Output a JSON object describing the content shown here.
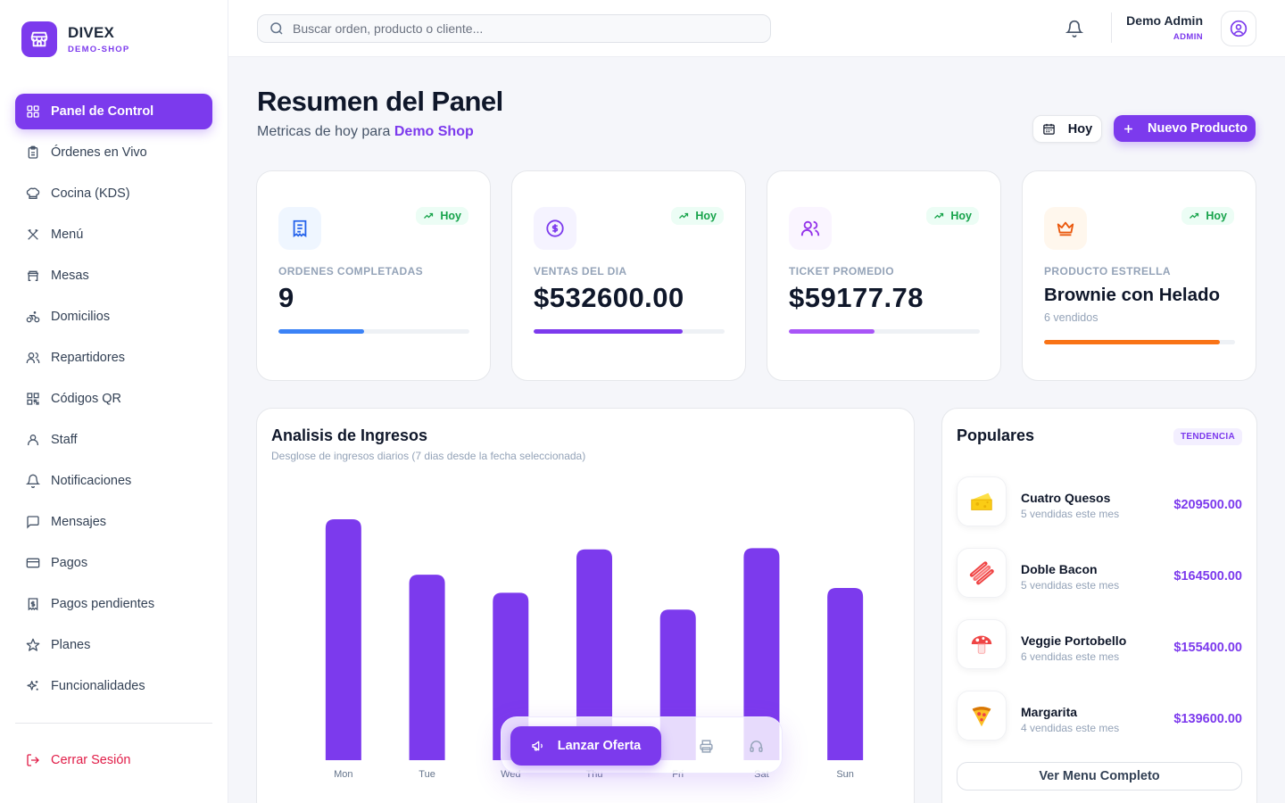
{
  "brand": {
    "name": "DIVEX",
    "subtitle": "DEMO-SHOP"
  },
  "sidebar": {
    "items": [
      {
        "label": "Panel de Control",
        "icon": "dashboard-icon",
        "active": true
      },
      {
        "label": "Órdenes en Vivo",
        "icon": "clipboard-icon"
      },
      {
        "label": "Cocina (KDS)",
        "icon": "chef-hat-icon"
      },
      {
        "label": "Menú",
        "icon": "utensils-icon"
      },
      {
        "label": "Mesas",
        "icon": "table-icon"
      },
      {
        "label": "Domicilios",
        "icon": "bike-icon"
      },
      {
        "label": "Repartidores",
        "icon": "users-icon"
      },
      {
        "label": "Códigos QR",
        "icon": "qr-code-icon"
      },
      {
        "label": "Staff",
        "icon": "staff-icon"
      },
      {
        "label": "Notificaciones",
        "icon": "bell-icon"
      },
      {
        "label": "Mensajes",
        "icon": "message-icon"
      },
      {
        "label": "Pagos",
        "icon": "credit-card-icon"
      },
      {
        "label": "Pagos pendientes",
        "icon": "receipt-dollar-icon"
      },
      {
        "label": "Planes",
        "icon": "star-icon"
      },
      {
        "label": "Funcionalidades",
        "icon": "sparkles-icon"
      }
    ],
    "logout_label": "Cerrar Sesión"
  },
  "topbar": {
    "search_placeholder": "Buscar orden, producto o cliente...",
    "user_name": "Demo Admin",
    "user_role": "ADMIN"
  },
  "header": {
    "title": "Resumen del Panel",
    "subtitle_prefix": "Metricas de hoy para",
    "shop_name": "Demo Shop",
    "today_button": "Hoy",
    "new_product_button": "Nuevo Producto"
  },
  "kpis": [
    {
      "label": "ORDENES COMPLETADAS",
      "value": "9",
      "badge": "Hoy",
      "progress": 0.45,
      "color": "#3b82f6",
      "icon": "receipt-icon"
    },
    {
      "label": "VENTAS DEL DIA",
      "value": "$532600.00",
      "badge": "Hoy",
      "progress": 0.78,
      "color": "#7c3aed",
      "icon": "dollar-circle-icon"
    },
    {
      "label": "TICKET PROMEDIO",
      "value": "$59177.78",
      "badge": "Hoy",
      "progress": 0.45,
      "color": "#a855f7",
      "icon": "users-icon"
    },
    {
      "label": "PRODUCTO ESTRELLA",
      "value": "Brownie con Helado",
      "note": "6 vendidos",
      "badge": "Hoy",
      "progress": 0.92,
      "color": "#f97316",
      "icon": "crown-icon"
    }
  ],
  "revenue": {
    "title": "Analisis de Ingresos",
    "subtitle": "Desglose de ingresos diarios (7 dias desde la fecha seleccionada)"
  },
  "chart_data": {
    "type": "bar",
    "categories": [
      "Mon",
      "Tue",
      "Wed",
      "Thu",
      "Fri",
      "Sat",
      "Sun"
    ],
    "values": [
      100,
      77,
      69.5,
      87.5,
      62.5,
      88,
      71.5
    ],
    "ylim": [
      0,
      100
    ],
    "color": "#7c3aed",
    "grid": false
  },
  "popular": {
    "title": "Populares",
    "tag": "TENDENCIA",
    "items": [
      {
        "name": "Cuatro Quesos",
        "sub": "5 vendidas este mes",
        "price": "$209500.00",
        "icon": "cheese-icon"
      },
      {
        "name": "Doble Bacon",
        "sub": "5 vendidas este mes",
        "price": "$164500.00",
        "icon": "bacon-icon"
      },
      {
        "name": "Veggie Portobello",
        "sub": "6 vendidas este mes",
        "price": "$155400.00",
        "icon": "mushroom-icon"
      },
      {
        "name": "Margarita",
        "sub": "4 vendidas este mes",
        "price": "$139600.00",
        "icon": "pizza-icon"
      }
    ],
    "button": "Ver Menu Completo"
  },
  "floating": {
    "main_label": "Lanzar Oferta"
  },
  "colors": {
    "accent": "#7c3aed",
    "positive": "#16a34a",
    "danger": "#e11d48"
  }
}
